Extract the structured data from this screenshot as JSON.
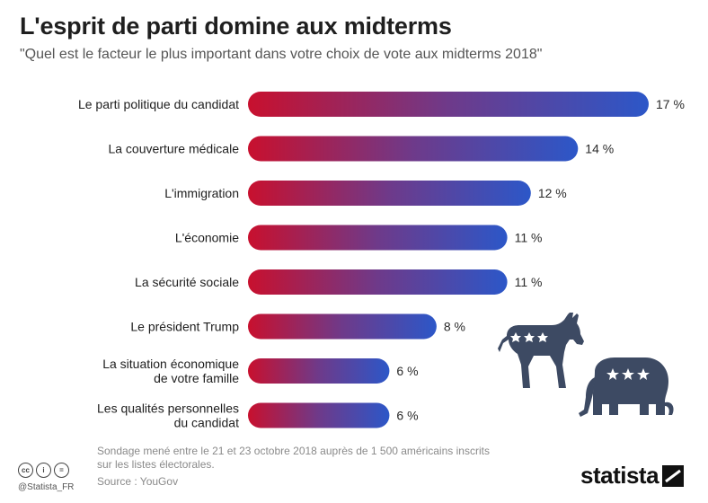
{
  "header": {
    "title": "L'esprit de parti domine aux midterms",
    "subtitle": "\"Quel est le facteur le plus important dans votre choix de vote aux midterms 2018\""
  },
  "chart_data": {
    "type": "bar",
    "orientation": "horizontal",
    "title": "L'esprit de parti domine aux midterms",
    "subtitle": "\"Quel est le facteur le plus important dans votre choix de vote aux midterms 2018\"",
    "categories": [
      [
        "Le parti politique du candidat"
      ],
      [
        "La couverture médicale"
      ],
      [
        "L'immigration"
      ],
      [
        "L'économie"
      ],
      [
        "La sécurité sociale"
      ],
      [
        "Le président Trump"
      ],
      [
        "La situation économique",
        "de votre famille"
      ],
      [
        "Les qualités personnelles",
        "du candidat"
      ]
    ],
    "values": [
      17,
      14,
      12,
      11,
      11,
      8,
      6,
      6
    ],
    "value_labels": [
      "17 %",
      "14 %",
      "12 %",
      "11 %",
      "11 %",
      "8 %",
      "6 %",
      "6 %"
    ],
    "unit": "%",
    "xlim": [
      0,
      17
    ],
    "gradient": {
      "start": "#c8102e",
      "end": "#2c57c8"
    }
  },
  "footer": {
    "note_line1": "Sondage mené entre le 21 et 23 octobre 2018 auprès de 1 500 américains inscrits",
    "note_line2": "sur les listes électorales.",
    "source": "Source : YouGov",
    "handle": "@Statista_FR",
    "cc_icons": [
      "cc",
      "i",
      "="
    ]
  },
  "brand": {
    "name": "statista"
  },
  "colors": {
    "bar_red": "#c8102e",
    "bar_blue": "#2c57c8",
    "mascot": "#3d4a63"
  }
}
